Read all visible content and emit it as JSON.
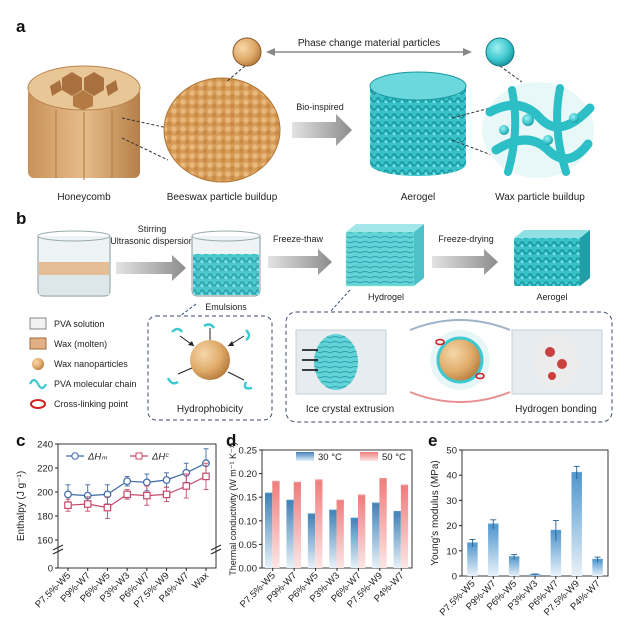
{
  "panel_a": {
    "letter": "a",
    "pcm_label": "Phase change material particles",
    "bio_label": "Bio-inspired",
    "captions": [
      "Honeycomb",
      "Beeswax particle buildup",
      "Aerogel",
      "Wax particle buildup"
    ]
  },
  "panel_b": {
    "letter": "b",
    "step1": [
      "Stirring",
      "Ultrasonic dispersion"
    ],
    "step2": "Freeze-thaw",
    "step3": "Freeze-drying",
    "stage_labels": [
      "Emulsions",
      "Hydrogel",
      "Aerogel"
    ],
    "legend": [
      "PVA solution",
      "Wax (molten)",
      "Wax nanoparticles",
      "PVA molecular chain",
      "Cross-linking point"
    ],
    "inset_labels": [
      "Hydrophobicity",
      "Ice crystal extrusion",
      "Hydrogen bonding"
    ]
  },
  "colors": {
    "wax": "#d9a25e",
    "wax_dark": "#b97a37",
    "teal": "#3cc9cf",
    "teal_dark": "#1a9aa5",
    "dh_m": "#3f6aa5",
    "dh_c": "#c8486a",
    "bar_30": "#4f8fc0",
    "bar_50": "#ef8e8e",
    "bar_e": "#5a9fd0"
  },
  "chart_data": [
    {
      "panel": "c",
      "type": "line",
      "categories": [
        "P7.5%-W5",
        "P9%-W7",
        "P6%-W5",
        "P3%-W3",
        "P6%-W7",
        "P7.5%-W9",
        "P4%-W7",
        "Wax"
      ],
      "ylabel": "Enthalpy (J g⁻¹)",
      "ylim": [
        0,
        240
      ],
      "yticks": [
        0,
        160,
        180,
        200,
        220,
        240
      ],
      "axis_break": true,
      "legend_position": "top-left",
      "series": [
        {
          "name": "ΔHₘ",
          "values": [
            198,
            197,
            198,
            209,
            208,
            210,
            216,
            224
          ],
          "errors": [
            8,
            9,
            8,
            4,
            7,
            6,
            8,
            12
          ]
        },
        {
          "name": "ΔHᶜ",
          "values": [
            189,
            190,
            187,
            198,
            197,
            198,
            205,
            213
          ],
          "errors": [
            5,
            6,
            9,
            4,
            8,
            6,
            10,
            11
          ]
        }
      ]
    },
    {
      "panel": "d",
      "type": "bar",
      "categories": [
        "P7.5%-W5",
        "P9%-W7",
        "P6%-W5",
        "P3%-W3",
        "P6%-W7",
        "P7.5%-W9",
        "P4%-W7"
      ],
      "ylabel": "Thermal conductivity (W m⁻¹ K⁻¹)",
      "ylim": [
        0.0,
        0.25
      ],
      "yticks": [
        0.0,
        0.05,
        0.1,
        0.15,
        0.2,
        0.25
      ],
      "legend_position": "top",
      "series": [
        {
          "name": "30 °C",
          "values": [
            0.158,
            0.143,
            0.114,
            0.122,
            0.105,
            0.137,
            0.119
          ]
        },
        {
          "name": "50 °C",
          "values": [
            0.183,
            0.181,
            0.186,
            0.143,
            0.154,
            0.189,
            0.175
          ]
        }
      ]
    },
    {
      "panel": "e",
      "type": "bar",
      "categories": [
        "P7.5%-W5",
        "P9%-W7",
        "P6%-W5",
        "P3%-W3",
        "P6%-W7",
        "P7.5%-W9",
        "P4%-W7"
      ],
      "ylabel": "Young's modulus (MPa)",
      "ylim": [
        0,
        50
      ],
      "yticks": [
        0,
        10,
        20,
        30,
        40,
        50
      ],
      "series": [
        {
          "values": [
            13,
            20.5,
            7.5,
            0.5,
            18,
            41,
            6.5
          ],
          "errors": [
            1.5,
            1.8,
            1.0,
            0.3,
            4.0,
            2.5,
            1.0
          ]
        }
      ]
    }
  ]
}
